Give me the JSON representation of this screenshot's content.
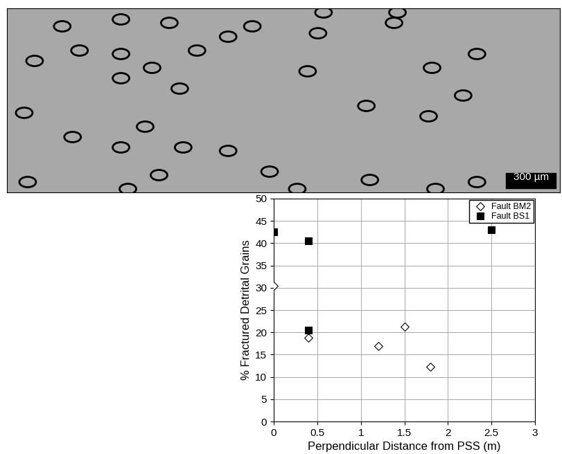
{
  "chart_data": {
    "type": "scatter",
    "xlabel": "Perpendicular Distance from PSS (m)",
    "ylabel": "% Fractured Detrital Grains",
    "xlim": [
      0,
      3
    ],
    "xticks": [
      0,
      0.5,
      1,
      1.5,
      2,
      2.5,
      3
    ],
    "ylim": [
      0,
      50
    ],
    "yticks": [
      0,
      5,
      10,
      15,
      20,
      25,
      30,
      35,
      40,
      45,
      50
    ],
    "grid": true,
    "legend": "upper right",
    "series": [
      {
        "name": "Fault BM2",
        "color": "#000000",
        "marker": "diamond",
        "x": [
          0,
          0.4,
          1.2,
          1.5,
          1.8
        ],
        "values": [
          30.5,
          18.8,
          17,
          21.2,
          12.3
        ]
      },
      {
        "name": "Fault BS1",
        "color": "#000000",
        "marker": "square",
        "x": [
          0,
          0.4,
          0.4,
          2.5
        ],
        "values": [
          42.5,
          40.5,
          20.5,
          43
        ]
      }
    ]
  },
  "image": {
    "scale_bar_label": "300 µm"
  }
}
